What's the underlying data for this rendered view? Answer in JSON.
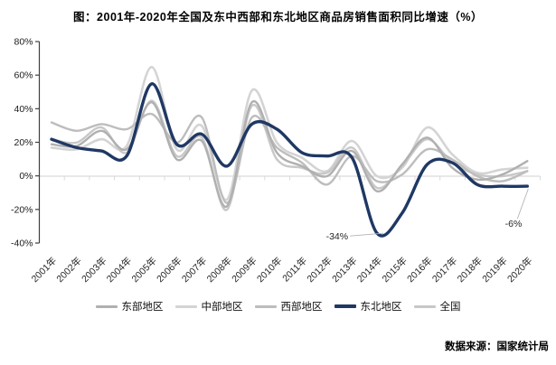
{
  "title": "图：2001年-2020年全国及东中西部和东北地区商品房销售面积同比增速（%）",
  "source": "数据来源：国家统计局",
  "chart_data": {
    "type": "line",
    "x": [
      "2001年",
      "2002年",
      "2003年",
      "2004年",
      "2005年",
      "2006年",
      "2007年",
      "2008年",
      "2009年",
      "2010年",
      "2011年",
      "2012年",
      "2013年",
      "2014年",
      "2015年",
      "2016年",
      "2017年",
      "2018年",
      "2019年",
      "2020年"
    ],
    "yticks": [
      "80%",
      "60%",
      "40%",
      "20%",
      "0%",
      "-20%",
      "-40%"
    ],
    "ylim": [
      -40,
      80
    ],
    "grid": "zero-line-only",
    "legend_position": "bottom",
    "smooth": true,
    "series": [
      {
        "name": "东部地区",
        "color": "#b0b0b0",
        "width": 2.4,
        "values": [
          19,
          18,
          27,
          16,
          44,
          10,
          21,
          -18,
          44,
          14,
          6,
          0,
          15,
          -9,
          7,
          23,
          5,
          -2,
          1,
          9
        ]
      },
      {
        "name": "中部地区",
        "color": "#d4d4d4",
        "width": 2.6,
        "values": [
          17,
          16,
          22,
          18,
          65,
          16,
          30,
          -14,
          51,
          20,
          11,
          3,
          21,
          0,
          5,
          29,
          13,
          2,
          4,
          5
        ]
      },
      {
        "name": "西部地区",
        "color": "#bdbdbd",
        "width": 2.4,
        "values": [
          32,
          27,
          31,
          28,
          37,
          20,
          35,
          -16,
          35,
          17,
          8,
          -5,
          12,
          -3,
          1,
          16,
          10,
          0,
          -3,
          3
        ]
      },
      {
        "name": "东北地区",
        "color": "#1f3864",
        "width": 3.4,
        "values": [
          22,
          17,
          15,
          12,
          55,
          19,
          25,
          6,
          31,
          28,
          14,
          12,
          11,
          -34,
          -22,
          7,
          8,
          -5,
          -6,
          -6
        ]
      },
      {
        "name": "全国",
        "color": "#c8c8c8",
        "width": 2.4,
        "values": [
          22,
          20,
          29,
          14,
          45,
          12,
          23,
          -20,
          42,
          10,
          5,
          2,
          17,
          -7,
          6,
          22,
          8,
          1,
          0,
          3
        ]
      }
    ],
    "annotations": [
      {
        "text": "-34%",
        "series": "东北地区",
        "year": "2014年",
        "year_index": 13,
        "value": -34
      },
      {
        "text": "-6%",
        "series": "东北地区",
        "year": "2020年",
        "year_index": 19,
        "value": -6
      }
    ]
  }
}
